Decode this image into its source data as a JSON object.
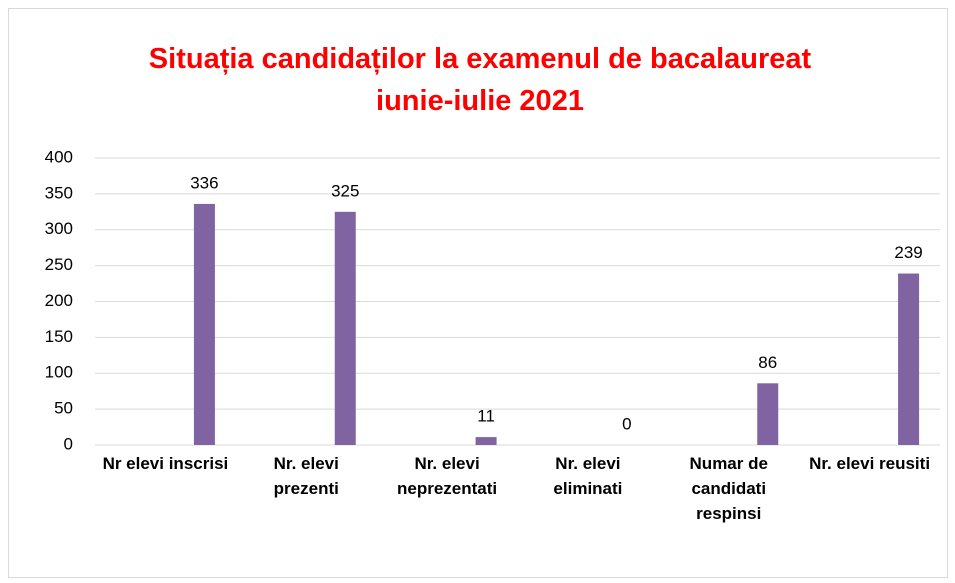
{
  "chart_data": {
    "type": "bar",
    "title": "Situația candidaților la examenul de bacalaureat iunie-iulie 2021",
    "categories": [
      "Nr elevi inscrisi",
      "Nr. elevi prezenti",
      "Nr. elevi neprezentati",
      "Nr. elevi eliminati",
      "Numar de candidati respinsi",
      "Nr. elevi reusiti"
    ],
    "values": [
      336,
      325,
      11,
      0,
      86,
      239
    ],
    "color": "#8064a2",
    "ylim": [
      0,
      400
    ],
    "yticks": [
      0,
      50,
      100,
      150,
      200,
      250,
      300,
      350,
      400
    ],
    "grid": true
  }
}
